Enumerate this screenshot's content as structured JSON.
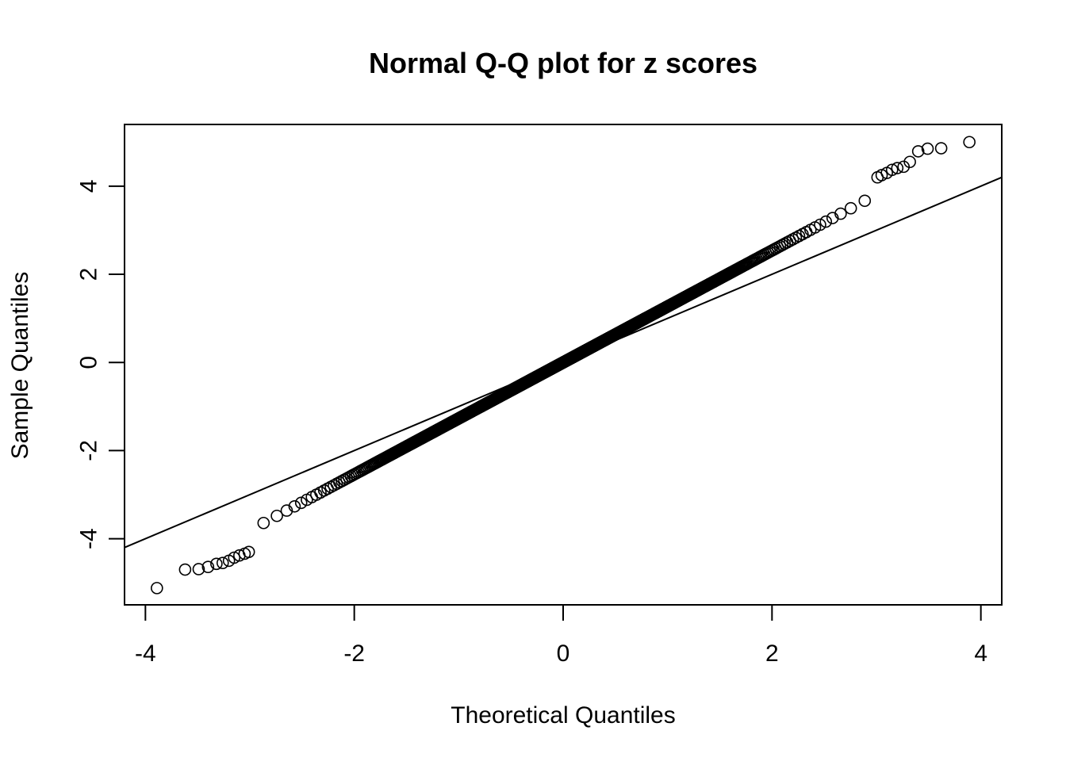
{
  "chart_data": {
    "type": "scatter",
    "title": "Normal Q-Q plot for z scores",
    "xlabel": "Theoretical Quantiles",
    "ylabel": "Sample Quantiles",
    "xlim": [
      -4.2,
      4.2
    ],
    "ylim": [
      -5.5,
      5.4
    ],
    "xticks": [
      -4,
      -2,
      0,
      2,
      4
    ],
    "yticks": [
      -4,
      -2,
      0,
      2,
      4
    ],
    "grid": false,
    "legend": "none",
    "reference_line": {
      "slope": 1,
      "intercept": 0
    },
    "sample_slope": 1.27,
    "n_points": 8000,
    "tail_points": [
      {
        "x": -3.89,
        "y": -5.12
      },
      {
        "x": -3.62,
        "y": -4.7
      },
      {
        "x": -3.49,
        "y": -4.69
      },
      {
        "x": -3.4,
        "y": -4.64
      },
      {
        "x": -3.32,
        "y": -4.57
      },
      {
        "x": -3.26,
        "y": -4.55
      },
      {
        "x": -3.2,
        "y": -4.5
      },
      {
        "x": -3.15,
        "y": -4.43
      },
      {
        "x": -3.1,
        "y": -4.38
      },
      {
        "x": -3.05,
        "y": -4.34
      },
      {
        "x": -3.01,
        "y": -4.3
      },
      {
        "x": 3.01,
        "y": 4.2
      },
      {
        "x": 3.05,
        "y": 4.25
      },
      {
        "x": 3.1,
        "y": 4.3
      },
      {
        "x": 3.15,
        "y": 4.37
      },
      {
        "x": 3.2,
        "y": 4.41
      },
      {
        "x": 3.26,
        "y": 4.44
      },
      {
        "x": 3.32,
        "y": 4.55
      },
      {
        "x": 3.4,
        "y": 4.79
      },
      {
        "x": 3.49,
        "y": 4.85
      },
      {
        "x": 3.62,
        "y": 4.86
      },
      {
        "x": 3.89,
        "y": 5.0
      }
    ]
  }
}
